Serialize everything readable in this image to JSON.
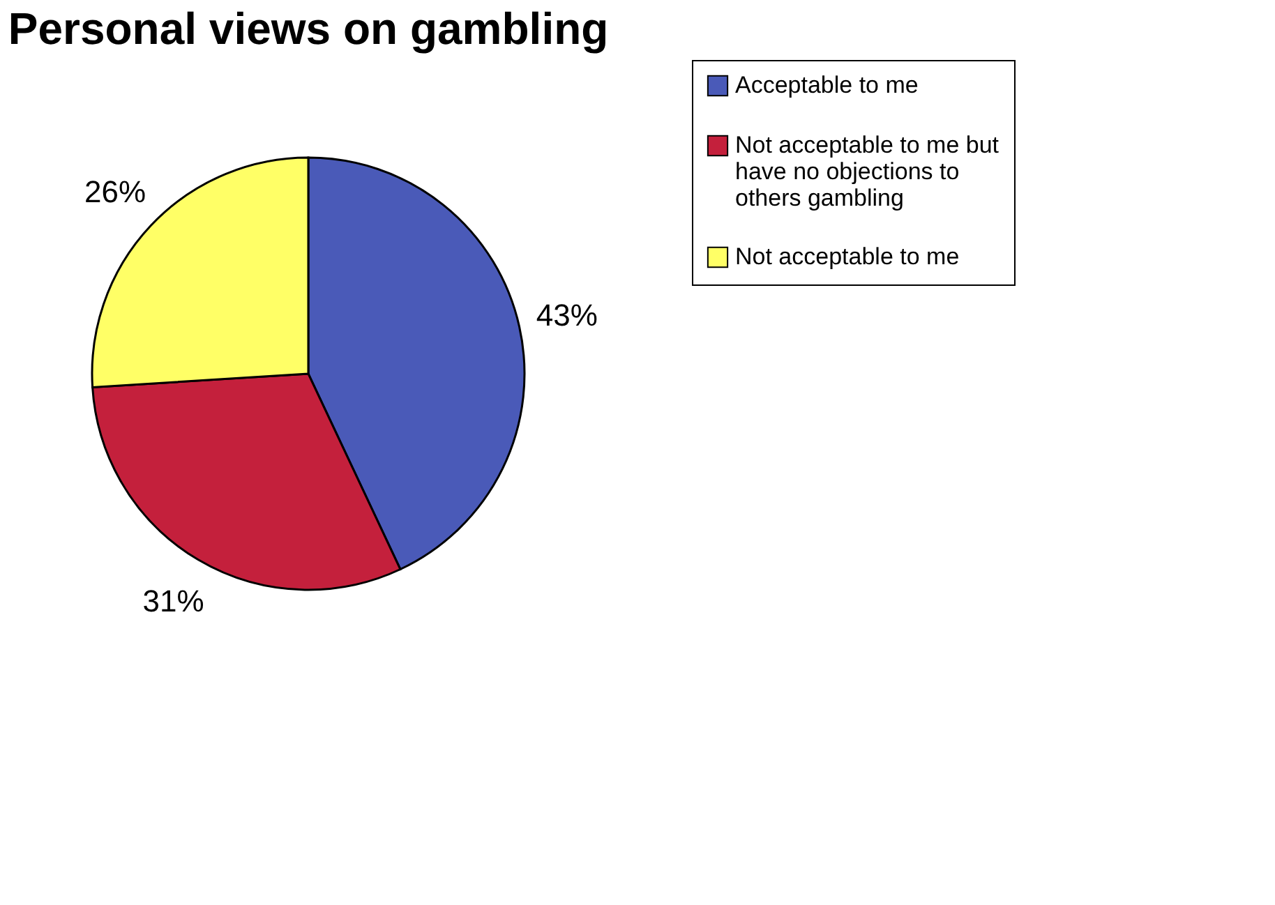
{
  "chart_data": {
    "type": "pie",
    "title": "Personal views on gambling",
    "categories": [
      "Acceptable to me",
      "Not acceptable to me but have no objections to others gambling",
      "Not acceptable to me"
    ],
    "values": [
      43,
      31,
      26
    ],
    "colors": [
      "#4a5ab8",
      "#c4203c",
      "#ffff66"
    ],
    "value_labels": [
      "43%",
      "31%",
      "26%"
    ],
    "legend": "right"
  }
}
